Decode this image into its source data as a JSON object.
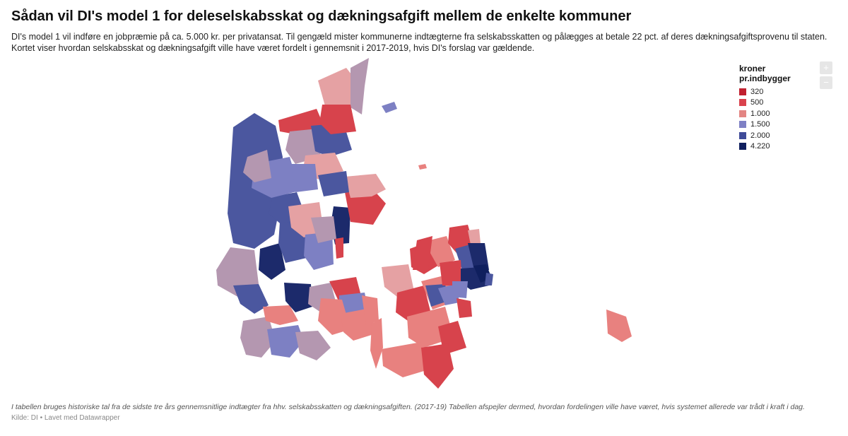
{
  "header": {
    "title": "Sådan vil DI's model 1 for deleselskabsskat og dækningsafgift mellem de enkelte kommuner",
    "subtitle": "DI's model 1 vil indføre en jobpræmie på ca. 5.000 kr. per privatansat. Til gengæld mister kommunerne indtægterne fra selskabsskatten og pålægges at betale 22 pct. af deres dækningsafgiftsprovenu til staten. Kortet viser hvordan selskabsskat og dækningsafgift ville have været fordelt i gennemsnit i 2017-2019, hvis DI's forslag var gældende."
  },
  "legend": {
    "title": "kroner pr.indbygger",
    "items": [
      {
        "label": "320",
        "color": "#c1202f"
      },
      {
        "label": "500",
        "color": "#d9424d"
      },
      {
        "label": "1.000",
        "color": "#e38583"
      },
      {
        "label": "1.500",
        "color": "#7e80c4"
      },
      {
        "label": "2.000",
        "color": "#3f4b98"
      },
      {
        "label": "4.220",
        "color": "#0f1f5e"
      }
    ]
  },
  "controls": {
    "zoom_in": "+",
    "zoom_out": "−"
  },
  "footer": {
    "note": "I tabellen bruges historiske tal fra de sidste tre års gennemsnitlige indtægter fra hhv. selskabsskatten og dækningsafgiften. (2017-19) Tabellen afspejler dermed, hvordan fordelingen ville have været, hvis systemet allerede var trådt i kraft i dag.",
    "source": "Kilde: DI • Lavet med Datawrapper"
  },
  "colors": {
    "mauve": "#b497b0",
    "pink": "#e5a1a3",
    "salmon": "#e8817f",
    "red": "#d7434c",
    "lightblue": "#7d80c3",
    "midblue": "#4b579f",
    "navy": "#1c2a6b"
  }
}
